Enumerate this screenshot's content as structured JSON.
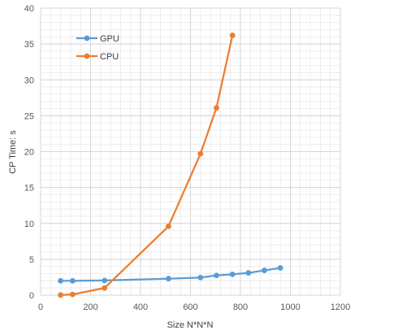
{
  "chart_data": {
    "type": "line",
    "title": "",
    "xlabel": "Size N*N*N",
    "ylabel": "CP Time: s",
    "xlim": [
      0,
      1200
    ],
    "ylim": [
      0,
      40
    ],
    "x_ticks": [
      0,
      200,
      400,
      600,
      800,
      1000,
      1200
    ],
    "y_ticks": [
      0,
      5,
      10,
      15,
      20,
      25,
      30,
      35,
      40
    ],
    "x_tick_labels": [
      "0",
      "200",
      "400",
      "600",
      "800",
      "1000",
      "1200"
    ],
    "y_tick_labels": [
      "0",
      "5",
      "10",
      "15",
      "20",
      "25",
      "30",
      "35",
      "40"
    ],
    "grid": true,
    "minor_grid": true,
    "legend_position": "top-left",
    "series": [
      {
        "name": "GPU",
        "color": "#5b9bd5",
        "x": [
          80,
          128,
          256,
          512,
          640,
          704,
          768,
          832,
          896,
          960
        ],
        "y": [
          2.0,
          2.0,
          2.05,
          2.3,
          2.45,
          2.75,
          2.9,
          3.1,
          3.45,
          3.8
        ]
      },
      {
        "name": "CPU",
        "color": "#ed7d31",
        "x": [
          80,
          128,
          256,
          512,
          640,
          704,
          768
        ],
        "y": [
          0.02,
          0.1,
          1.0,
          9.6,
          19.7,
          26.1,
          36.2
        ]
      }
    ]
  }
}
